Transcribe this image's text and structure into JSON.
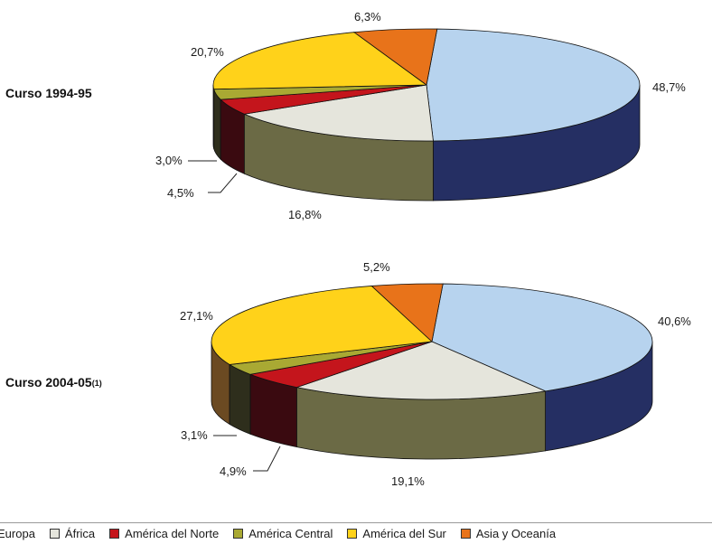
{
  "chart_data": [
    {
      "type": "pie",
      "title": "Curso 1994-95",
      "title_note": "",
      "slices": [
        {
          "name": "Europa",
          "value": 48.7,
          "label": "48,7%"
        },
        {
          "name": "África",
          "value": 16.8,
          "label": "16,8%"
        },
        {
          "name": "América del Norte",
          "value": 4.5,
          "label": "4,5%"
        },
        {
          "name": "América Central",
          "value": 3.0,
          "label": "3,0%"
        },
        {
          "name": "América del Sur",
          "value": 20.7,
          "label": "20,7%"
        },
        {
          "name": "Asia y Oceanía",
          "value": 6.3,
          "label": "6,3%"
        }
      ]
    },
    {
      "type": "pie",
      "title": "Curso 2004-05",
      "title_note": "(1)",
      "slices": [
        {
          "name": "Europa",
          "value": 40.6,
          "label": "40,6%"
        },
        {
          "name": "África",
          "value": 19.1,
          "label": "19,1%"
        },
        {
          "name": "América del Norte",
          "value": 4.9,
          "label": "4,9%"
        },
        {
          "name": "América Central",
          "value": 3.1,
          "label": "3,1%"
        },
        {
          "name": "América del Sur",
          "value": 27.1,
          "label": "27,1%"
        },
        {
          "name": "Asia y Oceanía",
          "value": 5.2,
          "label": "5,2%"
        }
      ]
    }
  ],
  "legend": {
    "placement": "bottom",
    "items": [
      {
        "name": "Europa",
        "color": "#b7d3ee"
      },
      {
        "name": "África",
        "color": "#e5e5dc"
      },
      {
        "name": "América del Norte",
        "color": "#c4151c"
      },
      {
        "name": "América Central",
        "color": "#a9a933"
      },
      {
        "name": "América del Sur",
        "color": "#ffd21a"
      },
      {
        "name": "Asia y Oceanía",
        "color": "#e8731a"
      }
    ]
  },
  "colors": {
    "Europa": {
      "top": "#b7d3ee",
      "side": "#252f63"
    },
    "África": {
      "top": "#e5e5dc",
      "side": "#6b6a45"
    },
    "América del Norte": {
      "top": "#c4151c",
      "side": "#3a0a10"
    },
    "América Central": {
      "top": "#a9a933",
      "side": "#2e2e1c"
    },
    "América del Sur": {
      "top": "#ffd21a",
      "side": "#6b4a22"
    },
    "Asia y Oceanía": {
      "top": "#e8731a",
      "side": "#7a3a10"
    }
  }
}
